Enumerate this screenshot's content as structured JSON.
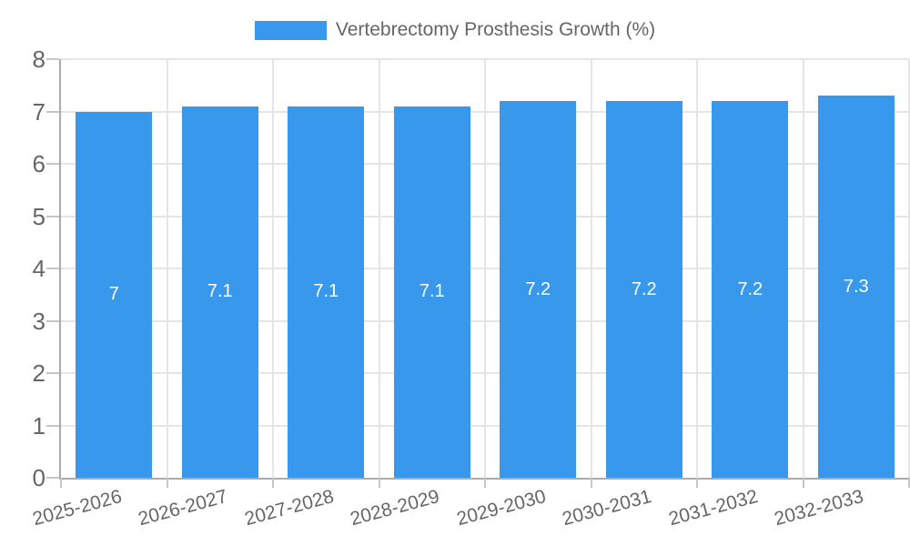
{
  "legend": {
    "label": "Vertebrectomy Prosthesis Growth (%)"
  },
  "colors": {
    "bar": "#3899EC",
    "bar_label": "#FFFFFF",
    "text": "#666666",
    "grid": "#E5E5E5",
    "axis": "#ABABAB",
    "tick": "#C6C6C6",
    "background": "#FFFFFF"
  },
  "chart_data": {
    "type": "bar",
    "title": "",
    "legend_entries": [
      "Vertebrectomy Prosthesis Growth (%)"
    ],
    "legend_position": "top",
    "categories": [
      "2025-2026",
      "2026-2027",
      "2027-2028",
      "2028-2029",
      "2029-2030",
      "2030-2031",
      "2031-2032",
      "2032-2033"
    ],
    "values": [
      7,
      7.1,
      7.1,
      7.1,
      7.2,
      7.2,
      7.2,
      7.3
    ],
    "bar_labels": [
      "7",
      "7.1",
      "7.1",
      "7.1",
      "7.2",
      "7.2",
      "7.2",
      "7.3"
    ],
    "xlabel": "",
    "ylabel": "",
    "ylim": [
      0,
      8
    ],
    "yticks": [
      0,
      1,
      2,
      3,
      4,
      5,
      6,
      7,
      8
    ],
    "grid": true
  }
}
